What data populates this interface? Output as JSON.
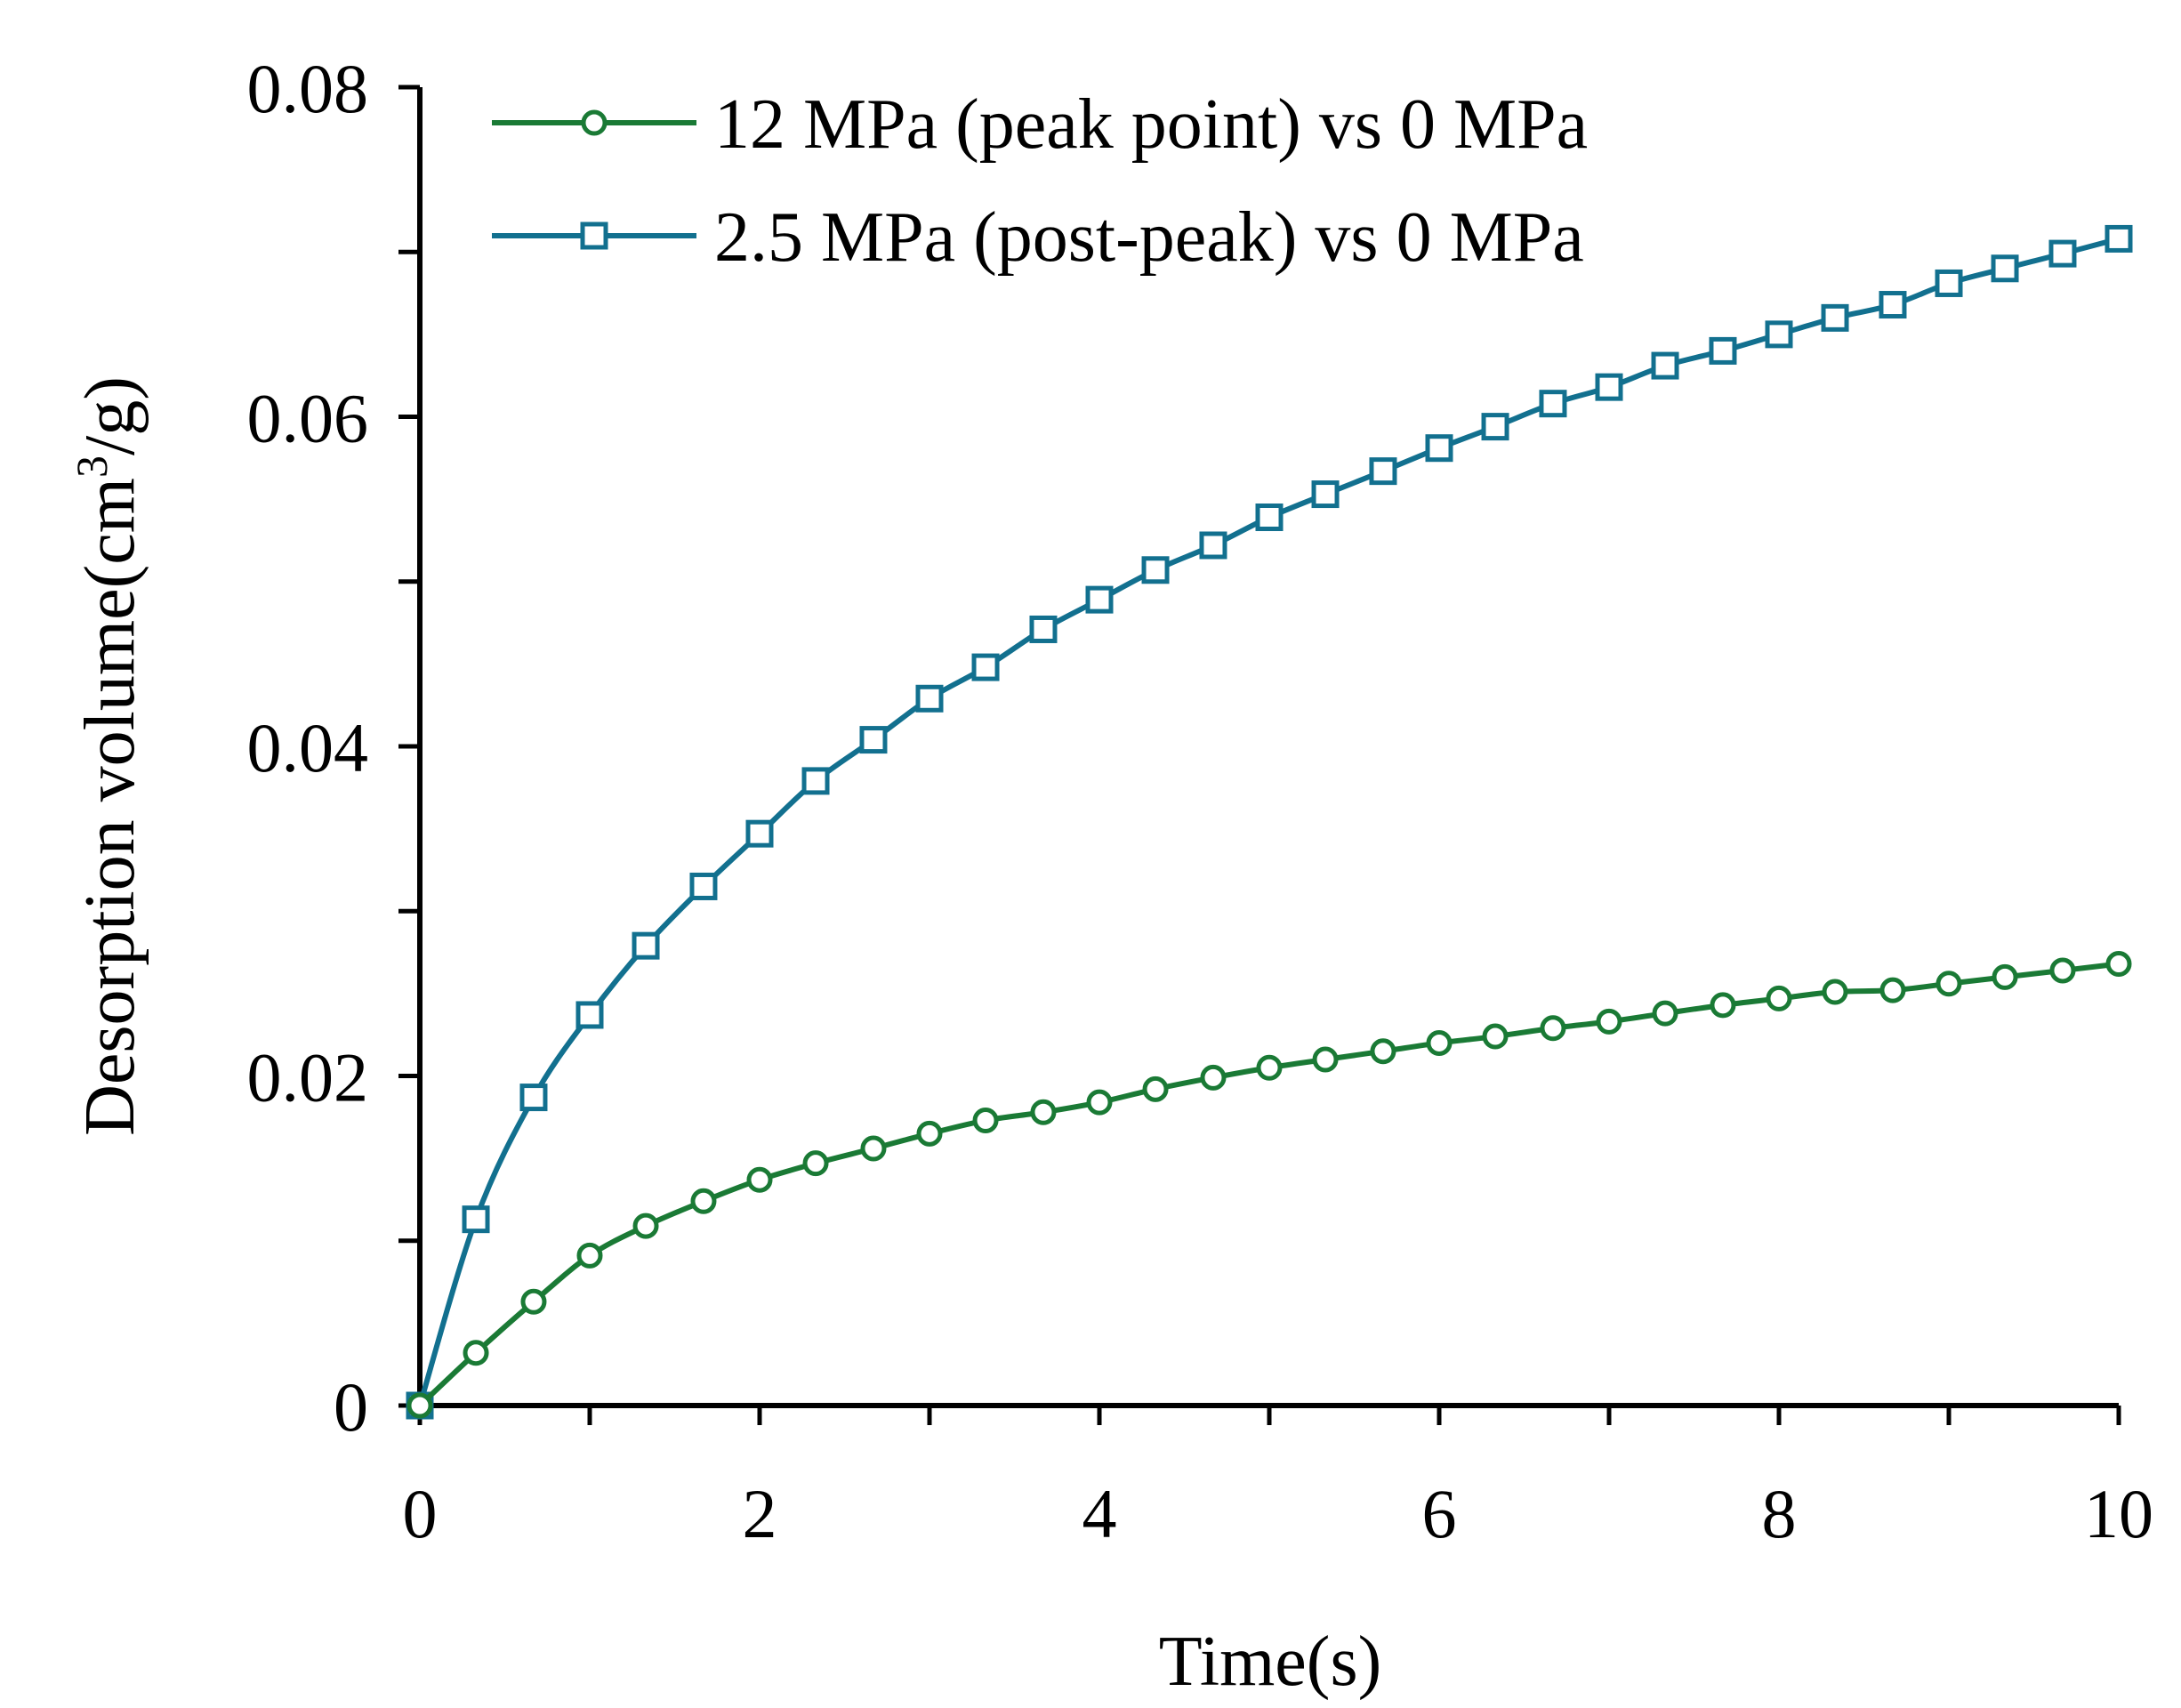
{
  "chart_data": {
    "type": "line",
    "title": "",
    "xlabel": "Time(s)",
    "ylabel_main": "Desorption volume(cm",
    "ylabel_sup": "3",
    "ylabel_tail": "/g)",
    "xlim": [
      0,
      10
    ],
    "ylim": [
      0,
      0.08
    ],
    "xticks": [
      0,
      2,
      4,
      6,
      8,
      10
    ],
    "xtick_labels": [
      "0",
      "2",
      "4",
      "6",
      "8",
      "10"
    ],
    "yticks": [
      0,
      0.02,
      0.04,
      0.06,
      0.08
    ],
    "ytick_labels": [
      "0",
      "0.02",
      "0.04",
      "0.06",
      "0.08"
    ],
    "legend_position": "top",
    "x": [
      0,
      0.33,
      0.67,
      1.0,
      1.33,
      1.67,
      2.0,
      2.33,
      2.67,
      3.0,
      3.33,
      3.67,
      4.0,
      4.33,
      4.67,
      5.0,
      5.33,
      5.67,
      6.0,
      6.33,
      6.67,
      7.0,
      7.33,
      7.67,
      8.0,
      8.33,
      8.67,
      9.0,
      9.33,
      9.67,
      10.0
    ],
    "series": [
      {
        "name": "12 MPa (peak point) vs 0 MPa",
        "color": "#1a7a35",
        "marker": "circle",
        "values": [
          0,
          0.0032,
          0.0063,
          0.0091,
          0.0109,
          0.0124,
          0.0137,
          0.0147,
          0.0156,
          0.0165,
          0.0173,
          0.0178,
          0.0184,
          0.0192,
          0.0199,
          0.0205,
          0.021,
          0.0215,
          0.022,
          0.0224,
          0.0229,
          0.0233,
          0.0238,
          0.0243,
          0.0247,
          0.0251,
          0.0252,
          0.0256,
          0.026,
          0.0264,
          0.0268
        ]
      },
      {
        "name": "2.5 MPa (post-peak) vs 0 MPa",
        "color": "#12708f",
        "marker": "square",
        "values": [
          0,
          0.0113,
          0.0187,
          0.0237,
          0.0279,
          0.0315,
          0.0347,
          0.0379,
          0.0404,
          0.0429,
          0.0448,
          0.0471,
          0.0489,
          0.0507,
          0.0522,
          0.0539,
          0.0553,
          0.0567,
          0.0581,
          0.0594,
          0.0608,
          0.0618,
          0.0631,
          0.064,
          0.065,
          0.066,
          0.0668,
          0.0681,
          0.069,
          0.0699,
          0.0708
        ]
      }
    ]
  }
}
